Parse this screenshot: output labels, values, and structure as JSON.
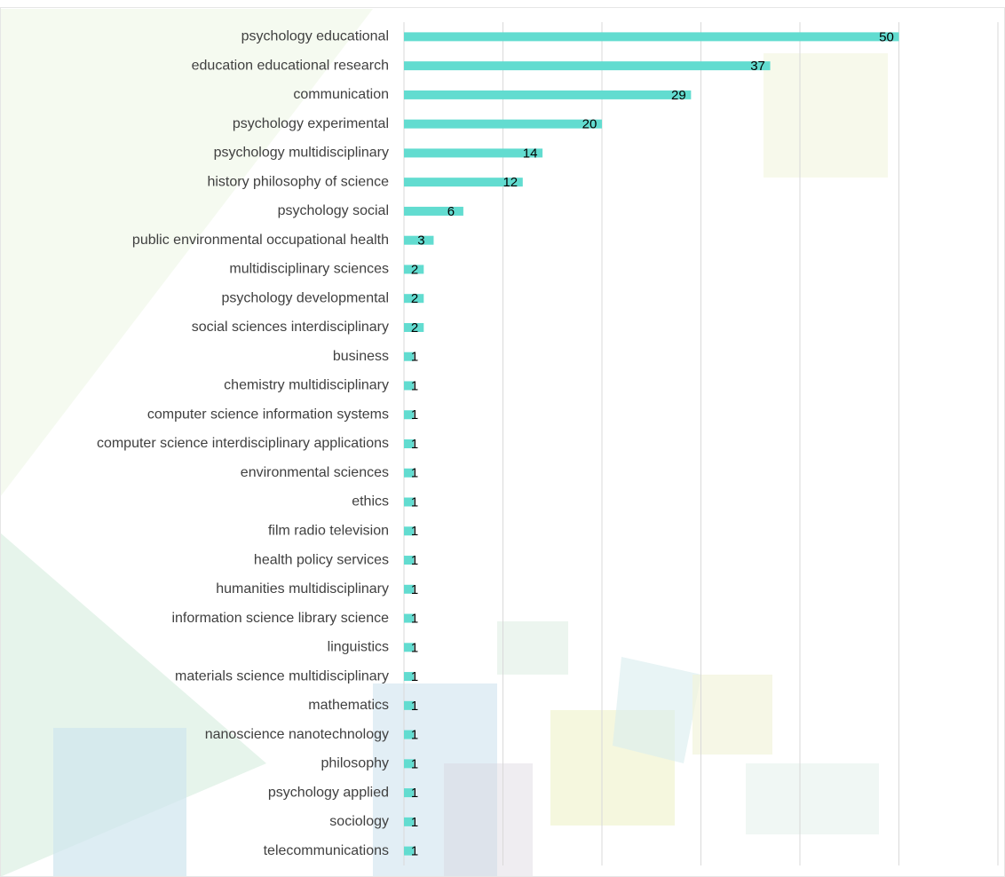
{
  "chart_data": {
    "type": "bar",
    "orientation": "horizontal",
    "categories": [
      "psychology educational",
      "education educational research",
      "communication",
      "psychology experimental",
      "psychology multidisciplinary",
      "history philosophy of science",
      "psychology social",
      "public environmental occupational health",
      "multidisciplinary sciences",
      "psychology developmental",
      "social sciences interdisciplinary",
      "business",
      "chemistry multidisciplinary",
      "computer science information systems",
      "computer science interdisciplinary applications",
      "environmental sciences",
      "ethics",
      "film radio television",
      "health policy services",
      "humanities multidisciplinary",
      "information science library science",
      "linguistics",
      "materials science multidisciplinary",
      "mathematics",
      "nanoscience nanotechnology",
      "philosophy",
      "psychology applied",
      "sociology",
      "telecommunications"
    ],
    "values": [
      50,
      37,
      29,
      20,
      14,
      12,
      6,
      3,
      2,
      2,
      2,
      1,
      1,
      1,
      1,
      1,
      1,
      1,
      1,
      1,
      1,
      1,
      1,
      1,
      1,
      1,
      1,
      1,
      1
    ],
    "color": "#62dcd0",
    "xlim": [
      0,
      60
    ],
    "xticks": [
      0,
      10,
      20,
      30,
      40,
      50,
      60
    ],
    "grid": true
  }
}
